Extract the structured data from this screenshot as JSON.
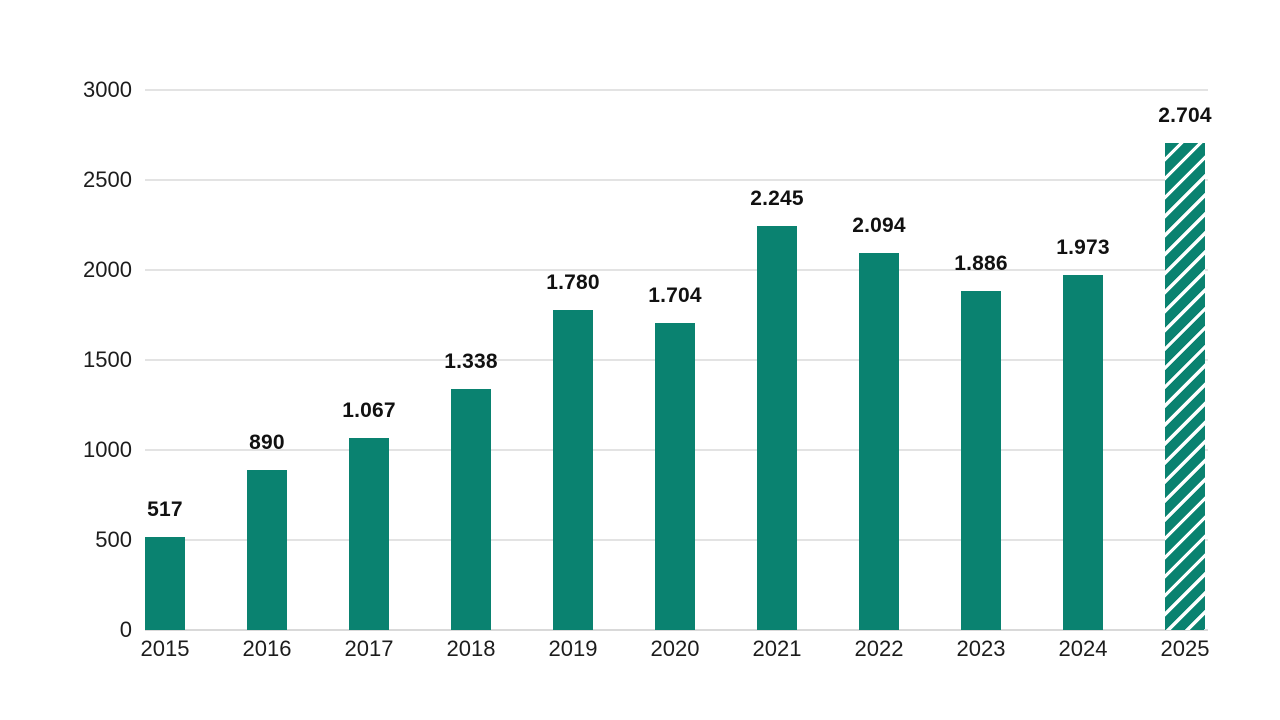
{
  "chart_data": {
    "type": "bar",
    "title": "",
    "categories": [
      "2015",
      "2016",
      "2017",
      "2018",
      "2019",
      "2020",
      "2021",
      "2022",
      "2023",
      "2024",
      "2025"
    ],
    "values": [
      517,
      890,
      1067,
      1338,
      1780,
      1704,
      2245,
      2094,
      1886,
      1973,
      2704
    ],
    "value_labels": [
      "517",
      "890",
      "1.067",
      "1.338",
      "1.780",
      "1.704",
      "2.245",
      "2.094",
      "1.886",
      "1.973",
      "2.704"
    ],
    "hatched": [
      false,
      false,
      false,
      false,
      false,
      false,
      false,
      false,
      false,
      false,
      true
    ],
    "xlabel": "",
    "ylabel": "",
    "ylim": [
      0,
      3000
    ],
    "yticks": [
      0,
      500,
      1000,
      1500,
      2000,
      2500,
      3000
    ],
    "ytick_labels": [
      "0",
      "500",
      "1000",
      "1500",
      "2000",
      "2500",
      "3000"
    ],
    "grid": true,
    "legend": null,
    "colors": {
      "bar": "#0a8270",
      "hatch_stripe": "#ffffff",
      "gridline": "#e3e3e3",
      "baseline": "#d9d9d9",
      "value_label": "#111111",
      "tick_label": "#1c1c1c",
      "background": "#ffffff"
    }
  }
}
